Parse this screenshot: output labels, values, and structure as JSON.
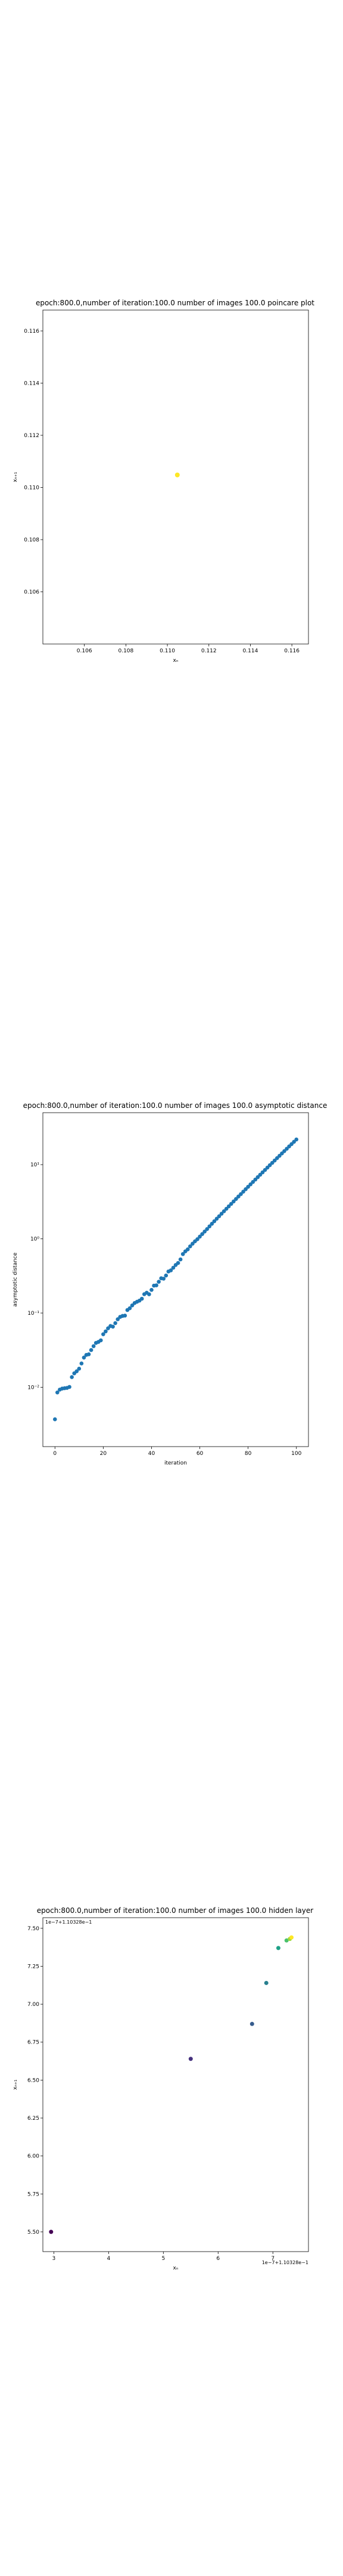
{
  "chart_data": [
    {
      "type": "scatter",
      "title": "epoch:800.0,number of iteration:100.0  number of images 100.0 poincare plot",
      "xlabel": "xₙ",
      "ylabel": "xₙ₊₁",
      "xlim": [
        0.104,
        0.1168
      ],
      "ylim": [
        0.104,
        0.1168
      ],
      "xticks": [
        "0.106",
        "0.108",
        "0.110",
        "0.112",
        "0.114",
        "0.116"
      ],
      "yticks": [
        "0.106",
        "0.108",
        "0.110",
        "0.112",
        "0.114",
        "0.116"
      ],
      "grid": false,
      "points": [
        {
          "x": 0.11048,
          "y": 0.11048
        }
      ],
      "point_color": "#fde725"
    },
    {
      "type": "scatter",
      "title": "epoch:800.0,number of iteration:100.0  number of images 100.0 asymptotic distance",
      "xlabel": "iteration",
      "ylabel": "asymptotic distance",
      "xticks": [
        "0",
        "20",
        "40",
        "60",
        "80",
        "100"
      ],
      "yticks": [
        "10⁻²",
        "10⁻¹",
        "10⁰",
        "10¹"
      ],
      "xlim": [
        -5,
        105
      ],
      "ylim_log10": [
        -2.8,
        1.7
      ],
      "yscale": "log",
      "grid": false,
      "color": "#1f77b4",
      "x_range": [
        0,
        100
      ],
      "values": [
        0.0037,
        0.0085,
        0.0093,
        0.0096,
        0.0097,
        0.0098,
        0.0101,
        0.0137,
        0.0154,
        0.0164,
        0.0178,
        0.0209,
        0.0251,
        0.0273,
        0.0278,
        0.0317,
        0.0358,
        0.0396,
        0.0408,
        0.0429,
        0.0518,
        0.0566,
        0.0623,
        0.0669,
        0.0656,
        0.0731,
        0.0824,
        0.0887,
        0.0914,
        0.0923,
        0.1098,
        0.1161,
        0.1268,
        0.1364,
        0.1419,
        0.1469,
        0.1559,
        0.1795,
        0.1878,
        0.1791,
        0.2051,
        0.2342,
        0.2364,
        0.2639,
        0.2941,
        0.2905,
        0.3206,
        0.3629,
        0.3757,
        0.408,
        0.444,
        0.4725,
        0.5282,
        0.6233,
        0.678,
        0.7212,
        0.7925,
        0.86,
        0.9265,
        0.9878,
        1.0724,
        1.1591,
        1.2549,
        1.3546,
        1.472,
        1.5949,
        1.7254,
        1.8656,
        2.0162,
        2.1785,
        2.3528,
        2.5412,
        2.7431,
        2.9612,
        3.1951,
        3.4474,
        3.7187,
        4.0105,
        4.3252,
        4.6637,
        5.028,
        5.4197,
        5.8405,
        6.2939,
        6.7811,
        7.3047,
        7.8676,
        8.4722,
        9.1213,
        9.8187,
        10.567,
        11.37,
        12.233,
        13.159,
        14.152,
        15.218,
        16.361,
        17.587,
        18.902,
        20.312,
        21.824
      ]
    },
    {
      "type": "scatter",
      "title": "epoch:800.0,number of iteration:100.0  number of images 100.0 hidden layer",
      "xlabel": "xₙ",
      "ylabel": "xₙ₊₁",
      "xticks": [
        "3",
        "4",
        "5",
        "6",
        "7"
      ],
      "yticks": [
        "5.50",
        "5.75",
        "6.00",
        "6.25",
        "6.50",
        "6.75",
        "7.00",
        "7.25",
        "7.50"
      ],
      "xlim": [
        2.8,
        7.65
      ],
      "ylim": [
        5.37,
        7.57
      ],
      "x_offset_text": "1e−7+1.10328e−1",
      "y_offset_text": "1e−7+1.10328e−1",
      "grid": false,
      "points": [
        {
          "x": 2.95,
          "y": 5.5,
          "color": "#440154"
        },
        {
          "x": 5.5,
          "y": 6.64,
          "color": "#46317e"
        },
        {
          "x": 6.62,
          "y": 6.87,
          "color": "#365c8d"
        },
        {
          "x": 6.88,
          "y": 7.14,
          "color": "#277f8e"
        },
        {
          "x": 7.1,
          "y": 7.37,
          "color": "#1fa187"
        },
        {
          "x": 7.25,
          "y": 7.42,
          "color": "#4ac16d"
        },
        {
          "x": 7.31,
          "y": 7.43,
          "color": "#a0da39"
        },
        {
          "x": 7.34,
          "y": 7.44,
          "color": "#fde725"
        }
      ]
    }
  ]
}
